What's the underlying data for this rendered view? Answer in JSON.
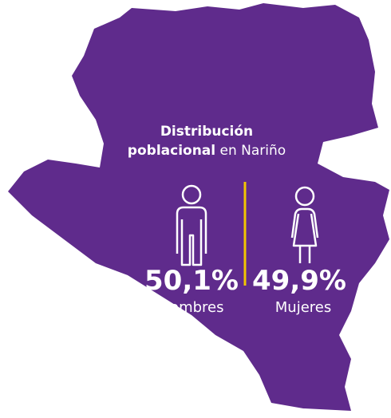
{
  "title": {
    "parts": [
      "Distribución",
      "poblacional",
      "en Nariño"
    ]
  },
  "stats": [
    {
      "value": "50,1%",
      "label": "Hombres"
    },
    {
      "value": "49,9%",
      "label": "Mujeres"
    }
  ]
}
